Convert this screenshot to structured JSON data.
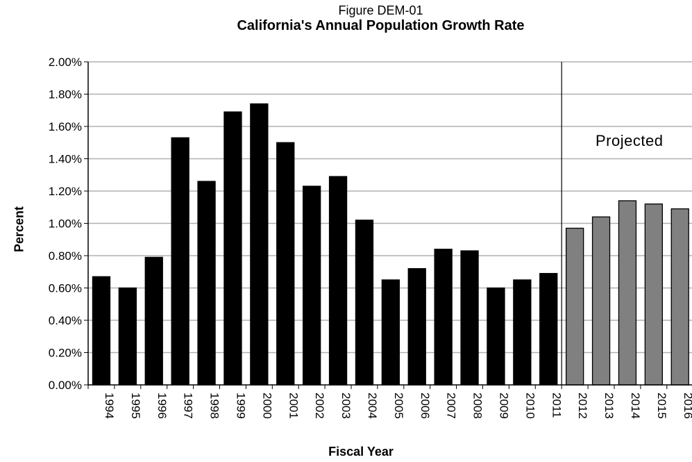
{
  "figure_number": "Figure DEM-01",
  "chart_data": {
    "type": "bar",
    "title": "California's Annual Population Growth Rate",
    "xlabel": "Fiscal Year",
    "ylabel": "Percent",
    "ylim": [
      0,
      2.0
    ],
    "y_ticks": [
      "0.00%",
      "0.20%",
      "0.40%",
      "0.60%",
      "0.80%",
      "1.00%",
      "1.20%",
      "1.40%",
      "1.60%",
      "1.80%",
      "2.00%"
    ],
    "grid": true,
    "annotation": "Projected",
    "categories": [
      "1994",
      "1995",
      "1996",
      "1997",
      "1998",
      "1999",
      "2000",
      "2001",
      "2002",
      "2003",
      "2004",
      "2005",
      "2006",
      "2007",
      "2008",
      "2009",
      "2010",
      "2011",
      "2012",
      "2013",
      "2014",
      "2015",
      "2016"
    ],
    "series": [
      {
        "values": [
          0.67,
          0.6,
          0.79,
          1.53,
          1.26,
          1.69,
          1.74,
          1.5,
          1.23,
          1.29,
          1.02,
          0.65,
          0.72,
          0.84,
          0.83,
          0.6,
          0.65,
          0.69,
          null,
          null,
          null,
          null,
          null
        ],
        "color": "#000000"
      },
      {
        "values": [
          null,
          null,
          null,
          null,
          null,
          null,
          null,
          null,
          null,
          null,
          null,
          null,
          null,
          null,
          null,
          null,
          null,
          null,
          0.97,
          1.04,
          1.14,
          1.12,
          1.09
        ],
        "color": "#808080"
      }
    ]
  }
}
